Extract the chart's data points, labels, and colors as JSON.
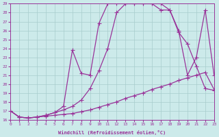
{
  "xlabel": "Windchill (Refroidissement éolien,°C)",
  "xlim": [
    0,
    23
  ],
  "ylim": [
    16,
    29
  ],
  "xticks": [
    0,
    1,
    2,
    3,
    4,
    5,
    6,
    7,
    8,
    9,
    10,
    11,
    12,
    13,
    14,
    15,
    16,
    17,
    18,
    19,
    20,
    21,
    22,
    23
  ],
  "yticks": [
    16,
    17,
    18,
    19,
    20,
    21,
    22,
    23,
    24,
    25,
    26,
    27,
    28,
    29
  ],
  "bg_color": "#cceaea",
  "grid_color": "#a8cccc",
  "line_color": "#993399",
  "line1_x": [
    0,
    1,
    2,
    3,
    4,
    5,
    6,
    7,
    8,
    9,
    10,
    11,
    12,
    13,
    14,
    15,
    16,
    17,
    18,
    19,
    20,
    21,
    22,
    23
  ],
  "line1_y": [
    17.0,
    16.3,
    16.2,
    16.3,
    16.4,
    16.5,
    16.6,
    16.7,
    16.9,
    17.1,
    17.4,
    17.7,
    18.0,
    18.4,
    18.7,
    19.0,
    19.4,
    19.7,
    20.0,
    20.4,
    20.7,
    21.0,
    21.3,
    19.4
  ],
  "line2_x": [
    0,
    1,
    2,
    3,
    4,
    5,
    6,
    7,
    8,
    9,
    10,
    11,
    12,
    13,
    14,
    15,
    16,
    17,
    18,
    19,
    20,
    21,
    22,
    23
  ],
  "line2_y": [
    17.0,
    16.3,
    16.2,
    16.3,
    16.5,
    16.8,
    17.1,
    17.5,
    18.2,
    19.5,
    21.5,
    24.0,
    28.0,
    29.0,
    29.0,
    29.0,
    29.0,
    29.0,
    28.3,
    26.0,
    21.0,
    23.0,
    28.3,
    21.0
  ],
  "line3_x": [
    0,
    1,
    2,
    3,
    4,
    5,
    6,
    7,
    8,
    9,
    10,
    11,
    12,
    13,
    14,
    15,
    16,
    17,
    18,
    19,
    20,
    21,
    22,
    23
  ],
  "line3_y": [
    17.0,
    16.3,
    16.2,
    16.3,
    16.5,
    16.8,
    17.5,
    23.8,
    21.2,
    21.0,
    26.8,
    29.0,
    29.0,
    29.0,
    29.0,
    29.0,
    29.0,
    28.3,
    28.3,
    25.8,
    24.5,
    22.0,
    19.5,
    19.3
  ]
}
